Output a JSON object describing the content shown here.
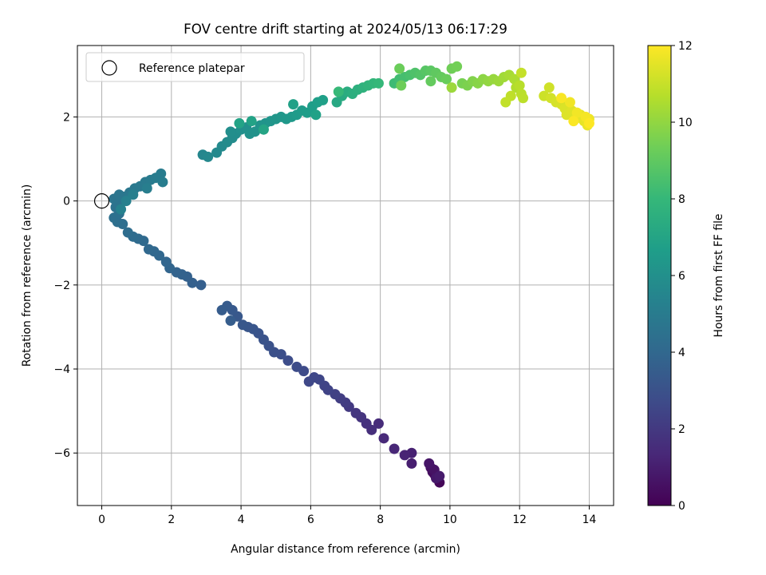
{
  "chart_data": {
    "type": "scatter",
    "title": "FOV centre drift starting at 2024/05/13 06:17:29",
    "xlabel": "Angular distance from reference (arcmin)",
    "ylabel": "Rotation from reference (arcmin)",
    "xlim": [
      -0.7,
      14.7
    ],
    "ylim": [
      -7.25,
      3.7
    ],
    "xticks": [
      0,
      2,
      4,
      6,
      8,
      10,
      12,
      14
    ],
    "yticks": [
      -6,
      -4,
      -2,
      0,
      2
    ],
    "grid": true,
    "legend": {
      "position": "top-left",
      "entries": [
        "Reference platepar"
      ]
    },
    "reference_point": {
      "x": 0,
      "y": 0,
      "marker": "open-circle",
      "color": "#000000"
    },
    "colorbar": {
      "label": "Hours from first FF file",
      "min": 0,
      "max": 12,
      "ticks": [
        0,
        2,
        4,
        6,
        8,
        10,
        12
      ],
      "colormap": "viridis",
      "stops": [
        "#440154",
        "#482878",
        "#3e4a89",
        "#31688e",
        "#26828e",
        "#1f9e89",
        "#35b779",
        "#6ece58",
        "#b5de2b",
        "#fde725"
      ]
    },
    "series": [
      {
        "marker": "filled-circle",
        "color_by": "hours",
        "points": [
          [
            9.55,
            -6.5,
            0.0
          ],
          [
            9.65,
            -6.6,
            0.1
          ],
          [
            9.7,
            -6.7,
            0.2
          ],
          [
            9.6,
            -6.55,
            0.3
          ],
          [
            9.5,
            -6.45,
            0.4
          ],
          [
            9.45,
            -6.35,
            0.5
          ],
          [
            9.55,
            -6.4,
            0.6
          ],
          [
            9.4,
            -6.25,
            0.7
          ],
          [
            9.6,
            -6.6,
            0.8
          ],
          [
            9.7,
            -6.55,
            0.9
          ],
          [
            8.9,
            -6.25,
            1.0
          ],
          [
            8.9,
            -6.0,
            1.1
          ],
          [
            8.7,
            -6.05,
            1.2
          ],
          [
            8.4,
            -5.9,
            1.3
          ],
          [
            8.1,
            -5.65,
            1.4
          ],
          [
            7.95,
            -5.3,
            1.5
          ],
          [
            7.75,
            -5.45,
            1.6
          ],
          [
            7.6,
            -5.3,
            1.7
          ],
          [
            7.45,
            -5.15,
            1.8
          ],
          [
            7.3,
            -5.05,
            1.9
          ],
          [
            7.1,
            -4.9,
            2.0
          ],
          [
            7.0,
            -4.8,
            2.1
          ],
          [
            6.85,
            -4.7,
            2.2
          ],
          [
            6.7,
            -4.6,
            2.3
          ],
          [
            6.5,
            -4.5,
            2.4
          ],
          [
            6.4,
            -4.4,
            2.45
          ],
          [
            6.25,
            -4.25,
            2.5
          ],
          [
            6.1,
            -4.2,
            2.55
          ],
          [
            5.95,
            -4.3,
            2.6
          ],
          [
            5.8,
            -4.05,
            2.7
          ],
          [
            5.6,
            -3.95,
            2.75
          ],
          [
            5.35,
            -3.8,
            2.8
          ],
          [
            5.15,
            -3.65,
            2.9
          ],
          [
            4.95,
            -3.6,
            2.95
          ],
          [
            4.8,
            -3.45,
            3.0
          ],
          [
            4.65,
            -3.3,
            3.05
          ],
          [
            4.5,
            -3.15,
            3.1
          ],
          [
            4.35,
            -3.05,
            3.15
          ],
          [
            4.2,
            -3.0,
            3.2
          ],
          [
            4.05,
            -2.95,
            3.25
          ],
          [
            3.9,
            -2.75,
            3.3
          ],
          [
            3.75,
            -2.6,
            3.35
          ],
          [
            3.6,
            -2.5,
            3.4
          ],
          [
            3.45,
            -2.6,
            3.45
          ],
          [
            3.7,
            -2.85,
            3.5
          ],
          [
            2.85,
            -2.0,
            3.6
          ],
          [
            2.6,
            -1.95,
            3.65
          ],
          [
            2.45,
            -1.8,
            3.7
          ],
          [
            2.3,
            -1.75,
            3.75
          ],
          [
            2.15,
            -1.7,
            3.8
          ],
          [
            1.95,
            -1.6,
            3.85
          ],
          [
            1.85,
            -1.45,
            3.9
          ],
          [
            1.65,
            -1.3,
            3.95
          ],
          [
            1.5,
            -1.2,
            4.0
          ],
          [
            1.35,
            -1.15,
            4.05
          ],
          [
            1.2,
            -0.95,
            4.1
          ],
          [
            1.05,
            -0.9,
            4.15
          ],
          [
            0.9,
            -0.85,
            4.2
          ],
          [
            0.75,
            -0.75,
            4.25
          ],
          [
            0.6,
            -0.55,
            4.3
          ],
          [
            0.45,
            -0.5,
            4.35
          ],
          [
            0.35,
            -0.4,
            4.4
          ],
          [
            0.5,
            -0.3,
            4.45
          ],
          [
            0.4,
            -0.15,
            4.5
          ],
          [
            0.45,
            -0.05,
            4.55
          ],
          [
            0.35,
            0.05,
            4.6
          ],
          [
            0.5,
            0.15,
            4.65
          ],
          [
            0.65,
            0.1,
            4.7
          ],
          [
            0.8,
            0.2,
            4.75
          ],
          [
            0.95,
            0.3,
            4.8
          ],
          [
            1.1,
            0.35,
            4.85
          ],
          [
            1.25,
            0.45,
            4.9
          ],
          [
            1.4,
            0.5,
            4.95
          ],
          [
            1.55,
            0.55,
            5.0
          ],
          [
            1.7,
            0.65,
            5.05
          ],
          [
            1.75,
            0.45,
            5.1
          ],
          [
            1.3,
            0.3,
            5.15
          ],
          [
            0.9,
            0.15,
            5.2
          ],
          [
            0.7,
            0.0,
            5.25
          ],
          [
            0.55,
            -0.2,
            5.3
          ],
          [
            2.9,
            1.1,
            5.5
          ],
          [
            3.05,
            1.05,
            5.6
          ],
          [
            3.3,
            1.15,
            5.65
          ],
          [
            3.45,
            1.3,
            5.7
          ],
          [
            3.6,
            1.4,
            5.75
          ],
          [
            3.75,
            1.5,
            5.8
          ],
          [
            3.85,
            1.6,
            5.85
          ],
          [
            3.7,
            1.65,
            5.9
          ],
          [
            4.0,
            1.7,
            5.95
          ],
          [
            4.15,
            1.75,
            6.0
          ],
          [
            4.25,
            1.6,
            6.05
          ],
          [
            4.4,
            1.65,
            6.1
          ],
          [
            4.55,
            1.8,
            6.15
          ],
          [
            4.7,
            1.85,
            6.2
          ],
          [
            4.85,
            1.9,
            6.25
          ],
          [
            5.0,
            1.95,
            6.3
          ],
          [
            5.15,
            2.0,
            6.35
          ],
          [
            5.3,
            1.95,
            6.4
          ],
          [
            5.45,
            2.0,
            6.45
          ],
          [
            5.6,
            2.05,
            6.5
          ],
          [
            5.75,
            2.15,
            6.55
          ],
          [
            5.9,
            2.1,
            6.6
          ],
          [
            6.05,
            2.25,
            6.65
          ],
          [
            6.2,
            2.35,
            6.7
          ],
          [
            6.35,
            2.4,
            6.75
          ],
          [
            6.15,
            2.05,
            6.8
          ],
          [
            5.5,
            2.3,
            6.85
          ],
          [
            4.3,
            1.9,
            6.9
          ],
          [
            3.95,
            1.85,
            6.95
          ],
          [
            4.65,
            1.7,
            7.0
          ],
          [
            6.75,
            2.35,
            7.2
          ],
          [
            6.9,
            2.5,
            7.3
          ],
          [
            7.05,
            2.6,
            7.4
          ],
          [
            7.2,
            2.55,
            7.5
          ],
          [
            7.35,
            2.65,
            7.6
          ],
          [
            7.5,
            2.7,
            7.7
          ],
          [
            7.65,
            2.75,
            7.8
          ],
          [
            7.8,
            2.8,
            7.9
          ],
          [
            7.95,
            2.8,
            8.0
          ],
          [
            6.8,
            2.6,
            8.05
          ],
          [
            8.4,
            2.8,
            8.2
          ],
          [
            8.55,
            2.9,
            8.3
          ],
          [
            8.7,
            2.95,
            8.4
          ],
          [
            8.85,
            3.0,
            8.5
          ],
          [
            9.0,
            3.05,
            8.6
          ],
          [
            9.15,
            3.0,
            8.7
          ],
          [
            9.3,
            3.1,
            8.8
          ],
          [
            9.45,
            3.1,
            8.9
          ],
          [
            9.6,
            3.05,
            9.0
          ],
          [
            9.75,
            2.95,
            9.1
          ],
          [
            9.9,
            2.9,
            9.2
          ],
          [
            8.55,
            3.15,
            9.25
          ],
          [
            8.6,
            2.75,
            9.3
          ],
          [
            10.05,
            3.15,
            9.35
          ],
          [
            10.2,
            3.2,
            9.4
          ],
          [
            10.35,
            2.8,
            9.5
          ],
          [
            10.5,
            2.75,
            9.6
          ],
          [
            10.65,
            2.85,
            9.7
          ],
          [
            10.8,
            2.8,
            9.8
          ],
          [
            10.95,
            2.9,
            9.9
          ],
          [
            11.1,
            2.85,
            10.0
          ],
          [
            11.25,
            2.9,
            10.1
          ],
          [
            11.4,
            2.85,
            10.2
          ],
          [
            11.55,
            2.95,
            10.3
          ],
          [
            11.7,
            3.0,
            10.4
          ],
          [
            11.85,
            2.9,
            10.5
          ],
          [
            11.9,
            2.7,
            10.6
          ],
          [
            12.0,
            2.75,
            10.7
          ],
          [
            12.05,
            2.55,
            10.75
          ],
          [
            12.1,
            2.45,
            10.8
          ],
          [
            11.75,
            2.5,
            10.85
          ],
          [
            11.6,
            2.35,
            10.9
          ],
          [
            12.05,
            3.05,
            10.95
          ],
          [
            10.05,
            2.7,
            10.2
          ],
          [
            9.45,
            2.85,
            9.1
          ],
          [
            12.7,
            2.5,
            11.1
          ],
          [
            12.85,
            2.7,
            11.15
          ],
          [
            12.9,
            2.45,
            11.2
          ],
          [
            13.05,
            2.35,
            11.25
          ],
          [
            13.2,
            2.3,
            11.3
          ],
          [
            13.3,
            2.2,
            11.35
          ],
          [
            13.35,
            2.05,
            11.4
          ],
          [
            13.5,
            2.15,
            11.45
          ],
          [
            13.6,
            1.95,
            11.5
          ],
          [
            13.75,
            2.05,
            11.55
          ],
          [
            13.85,
            1.9,
            11.6
          ],
          [
            13.95,
            1.8,
            11.65
          ],
          [
            14.0,
            1.95,
            11.7
          ],
          [
            13.45,
            2.35,
            11.75
          ],
          [
            13.65,
            2.1,
            11.8
          ],
          [
            13.9,
            2.0,
            11.85
          ],
          [
            13.2,
            2.45,
            11.9
          ],
          [
            13.55,
            1.9,
            11.95
          ],
          [
            14.0,
            1.85,
            12.0
          ]
        ]
      }
    ]
  }
}
